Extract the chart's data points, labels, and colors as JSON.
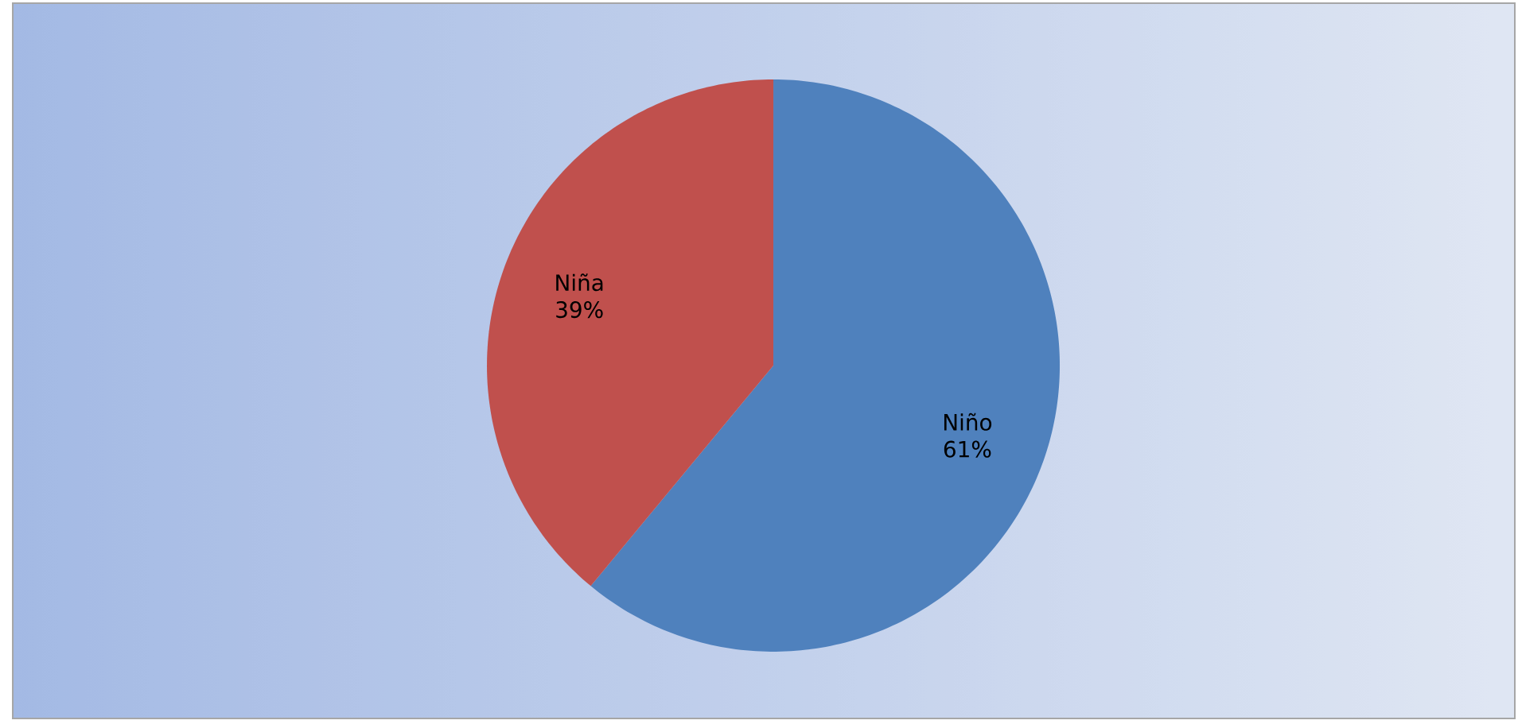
{
  "chart_data": {
    "type": "pie",
    "categories": [
      "Niño",
      "Niña"
    ],
    "values": [
      61,
      39
    ],
    "colors": [
      "#4f81bd",
      "#c0504d"
    ],
    "value_labels": [
      "61%",
      "39%"
    ]
  }
}
